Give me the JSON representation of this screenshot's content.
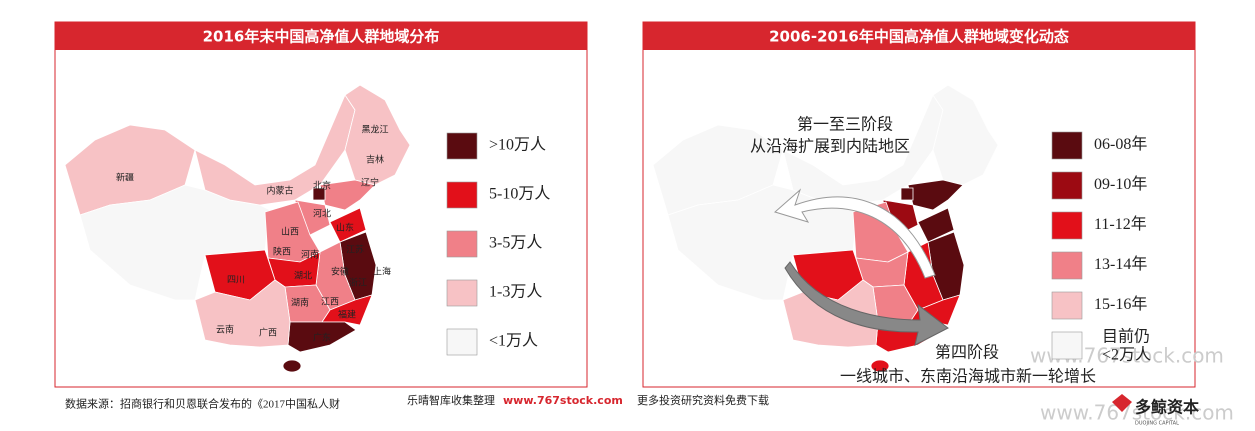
{
  "panels": [
    {
      "title": "2016年末中国高净值人群地域分布",
      "legend": [
        {
          "label": ">10万人",
          "color": "#5a0b10"
        },
        {
          "label": "5-10万人",
          "color": "#e2101a"
        },
        {
          "label": "3-5万人",
          "color": "#f08088"
        },
        {
          "label": "1-3万人",
          "color": "#f7c2c5"
        },
        {
          "label": "<1万人",
          "color": "#f7f7f7"
        }
      ],
      "map_labels": [
        "新疆",
        "内蒙古",
        "黑龙江",
        "吉林",
        "辽宁",
        "北京",
        "河北",
        "山西",
        "山东",
        "陕西",
        "河南",
        "江苏",
        "上海",
        "安徽",
        "湖北",
        "四川",
        "浙江",
        "湖南",
        "江西",
        "福建",
        "云南",
        "广西",
        "广东"
      ]
    },
    {
      "title": "2006-2016年中国高净值人群地域变化动态",
      "legend": [
        {
          "label": "06-08年",
          "color": "#5a0b10"
        },
        {
          "label": "09-10年",
          "color": "#9c0a12"
        },
        {
          "label": "11-12年",
          "color": "#e2101a"
        },
        {
          "label": "13-14年",
          "color": "#f08088"
        },
        {
          "label": "15-16年",
          "color": "#f7c2c5"
        },
        {
          "label": [
            "目前仍",
            "<2万人"
          ],
          "color": "#f7f7f7"
        }
      ],
      "annotations": [
        "第一至三阶段",
        "从沿海扩展到内陆地区",
        "第四阶段",
        "一线城市、东南沿海城市新一轮增长"
      ]
    }
  ],
  "source": "数据来源：招商银行和贝恩联合发布的《2017中国私人财",
  "watermark": {
    "text": "乐晴智库收集整理",
    "url": "www.767stock.com",
    "tail": "更多投资研究资料免费下载"
  },
  "site_watermarks": [
    "www.767stock.com",
    "www.767stock.com"
  ],
  "logo": {
    "name": "多鲸资本",
    "sub": "DUOJING CAPITAL"
  }
}
